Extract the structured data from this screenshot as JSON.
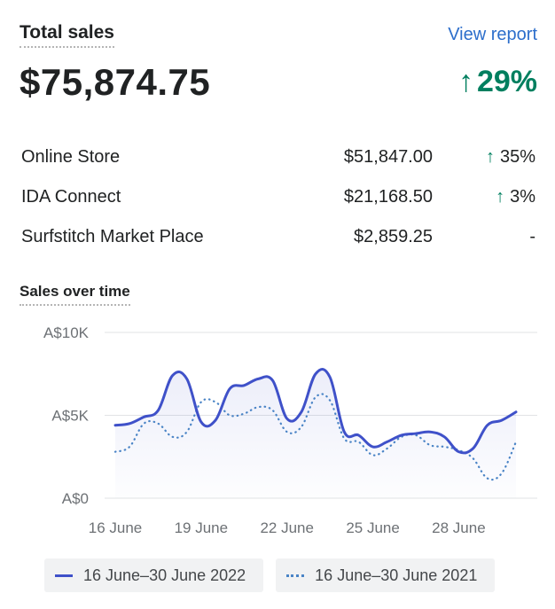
{
  "header": {
    "title": "Total sales",
    "view_report": "View report",
    "total": "$75,874.75",
    "total_change_arrow": "↑",
    "total_change": "29%"
  },
  "channels": [
    {
      "name": "Online Store",
      "amount": "$51,847.00",
      "arrow": "↑",
      "change": "35%"
    },
    {
      "name": "IDA Connect",
      "amount": "$21,168.50",
      "arrow": "↑",
      "change": "3%"
    },
    {
      "name": "Surfstitch Market Place",
      "amount": "$2,859.25",
      "arrow": "",
      "change": "-"
    }
  ],
  "chart_section_title": "Sales over time",
  "colors": {
    "positive": "#007f5f",
    "link": "#2c6ecb",
    "series_current": "#3f51c9",
    "series_previous": "#4a84c6"
  },
  "chart_data": {
    "type": "line",
    "title": "Sales over time",
    "y_ticks": [
      {
        "label": "A$10K",
        "value": 10000
      },
      {
        "label": "A$5K",
        "value": 5000
      },
      {
        "label": "A$0",
        "value": 0
      }
    ],
    "x_ticks": [
      {
        "label": "16 June",
        "day": 16
      },
      {
        "label": "19 June",
        "day": 19
      },
      {
        "label": "22 June",
        "day": 22
      },
      {
        "label": "25 June",
        "day": 25
      },
      {
        "label": "28 June",
        "day": 28
      }
    ],
    "ylim": [
      0,
      10000
    ],
    "series": [
      {
        "name": "16 June–30 June 2022",
        "style": "solid",
        "points": [
          [
            16,
            4400
          ],
          [
            16.5,
            4500
          ],
          [
            17,
            4900
          ],
          [
            17.5,
            5300
          ],
          [
            18,
            7400
          ],
          [
            18.5,
            7200
          ],
          [
            19,
            4600
          ],
          [
            19.5,
            4700
          ],
          [
            20,
            6600
          ],
          [
            20.5,
            6800
          ],
          [
            21,
            7200
          ],
          [
            21.5,
            7100
          ],
          [
            22,
            4800
          ],
          [
            22.5,
            5200
          ],
          [
            23,
            7500
          ],
          [
            23.5,
            7300
          ],
          [
            24,
            4000
          ],
          [
            24.5,
            3800
          ],
          [
            25,
            3100
          ],
          [
            25.5,
            3400
          ],
          [
            26,
            3800
          ],
          [
            26.5,
            3900
          ],
          [
            27,
            4000
          ],
          [
            27.5,
            3700
          ],
          [
            28,
            2800
          ],
          [
            28.5,
            3000
          ],
          [
            29,
            4400
          ],
          [
            29.5,
            4700
          ],
          [
            30,
            5200
          ]
        ]
      },
      {
        "name": "16 June–30 June 2021",
        "style": "dotted",
        "points": [
          [
            16,
            2800
          ],
          [
            16.5,
            3100
          ],
          [
            17,
            4500
          ],
          [
            17.5,
            4500
          ],
          [
            18,
            3700
          ],
          [
            18.5,
            4000
          ],
          [
            19,
            5800
          ],
          [
            19.5,
            5800
          ],
          [
            20,
            5000
          ],
          [
            20.5,
            5100
          ],
          [
            21,
            5500
          ],
          [
            21.5,
            5300
          ],
          [
            22,
            4000
          ],
          [
            22.5,
            4300
          ],
          [
            23,
            6100
          ],
          [
            23.5,
            5900
          ],
          [
            24,
            3600
          ],
          [
            24.5,
            3400
          ],
          [
            25,
            2600
          ],
          [
            25.5,
            3000
          ],
          [
            26,
            3700
          ],
          [
            26.5,
            3800
          ],
          [
            27,
            3200
          ],
          [
            27.5,
            3100
          ],
          [
            28,
            2900
          ],
          [
            28.5,
            2400
          ],
          [
            29,
            1200
          ],
          [
            29.5,
            1500
          ],
          [
            30,
            3400
          ]
        ]
      }
    ]
  },
  "legend": [
    {
      "label": "16 June–30 June 2022",
      "style": "solid"
    },
    {
      "label": "16 June–30 June 2021",
      "style": "dotted"
    }
  ]
}
